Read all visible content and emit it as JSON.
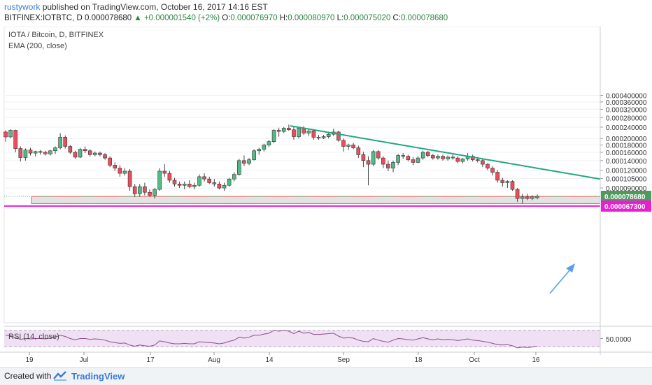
{
  "header": {
    "author": "rustywork",
    "published_text": "published on TradingView.com, October 16, 2017 14:16 EST",
    "symbol_line": "BITFINEX:IOTBTC, D",
    "last": "0.000078680",
    "change": "+0.000001540 (+2%)",
    "o_label": "O:",
    "o_val": "0.000076970",
    "h_label": "H:",
    "h_val": "0.000080970",
    "l_label": "L:",
    "l_val": "0.000075020",
    "c_label": "C:",
    "c_val": "0.000078680"
  },
  "legend": {
    "title": "IOTA / Bitcoin, D, BITFINEX",
    "ema": "EMA (200, close)"
  },
  "rsi": {
    "label": "RSI (14, close)",
    "value_label": "50.0000"
  },
  "footer": {
    "created": "Created with",
    "brand": "TradingView"
  },
  "colors": {
    "up": "#53b987",
    "down": "#eb4d5c",
    "trend": "#21a882",
    "arrow": "#5aa0e6",
    "support_fill": "#d9d9d9",
    "support_border": "#e8574c",
    "magenta": "#e91ed4",
    "rsi_line": "#8e4b8f",
    "rsi_band": "#efe0f3"
  },
  "chart_data": {
    "type": "candlestick",
    "scale": "log",
    "y_ticks": [
      "0.000400000",
      "0.000360000",
      "0.000320000",
      "0.000280000",
      "0.000240000",
      "0.000200000",
      "0.000180000",
      "0.000160000",
      "0.000140000",
      "0.000120000",
      "0.000105000",
      "0.000090000"
    ],
    "y_tick_values": [
      0.0004,
      0.00036,
      0.00032,
      0.00028,
      0.00024,
      0.0002,
      0.00018,
      0.00016,
      0.00014,
      0.00012,
      0.000105,
      9e-05
    ],
    "x_labels": [
      "19",
      "Jul",
      "17",
      "Aug",
      "14",
      "Sep",
      "18",
      "Oct",
      "16"
    ],
    "price_labels": [
      {
        "text": "0.000078680",
        "value": 7.868e-05,
        "kind": "last"
      },
      {
        "text": "0.000067300",
        "value": 6.73e-05,
        "kind": "level"
      }
    ],
    "support_zone": [
      7e-05,
      7.86e-05
    ],
    "magenta_level": 6.73e-05,
    "trendline": [
      [
        0.000245,
        0
      ],
      [
        0.000104,
        1
      ]
    ],
    "candles": [
      [
        0.000222,
        0.000228,
        0.00019,
        0.000205
      ],
      [
        0.000205,
        0.000232,
        0.000201,
        0.000228
      ],
      [
        0.000228,
        0.00023,
        0.00016,
        0.00017
      ],
      [
        0.00017,
        0.000176,
        0.000138,
        0.000147
      ],
      [
        0.000147,
        0.00017,
        0.00014,
        0.000166
      ],
      [
        0.000166,
        0.000172,
        0.000152,
        0.000158
      ],
      [
        0.000158,
        0.000164,
        0.00015,
        0.000162
      ],
      [
        0.000162,
        0.000166,
        0.000154,
        0.00016
      ],
      [
        0.00016,
        0.000164,
        0.000152,
        0.000156
      ],
      [
        0.000156,
        0.000166,
        0.000152,
        0.000164
      ],
      [
        0.000164,
        0.000176,
        0.000156,
        0.000172
      ],
      [
        0.000172,
        0.000218,
        0.000168,
        0.000204
      ],
      [
        0.000204,
        0.00021,
        0.00017,
        0.000176
      ],
      [
        0.000176,
        0.00018,
        0.000156,
        0.00016
      ],
      [
        0.00016,
        0.000164,
        0.000144,
        0.000148
      ],
      [
        0.000148,
        0.000172,
        0.000146,
        0.000168
      ],
      [
        0.000168,
        0.000176,
        0.000158,
        0.000164
      ],
      [
        0.000164,
        0.000168,
        0.00015,
        0.000154
      ],
      [
        0.000154,
        0.000162,
        0.00015,
        0.000158
      ],
      [
        0.000158,
        0.000162,
        0.00015,
        0.000154
      ],
      [
        0.000154,
        0.000158,
        0.000142,
        0.000146
      ],
      [
        0.000146,
        0.00015,
        0.000126,
        0.00013
      ],
      [
        0.00013,
        0.000136,
        0.000118,
        0.000124
      ],
      [
        0.000124,
        0.00013,
        0.000108,
        0.000114
      ],
      [
        0.000114,
        0.000124,
        0.00011,
        0.000118
      ],
      [
        0.000118,
        0.000122,
        8.6e-05,
        9.2e-05
      ],
      [
        9.2e-05,
        9.6e-05,
        7.8e-05,
        8.2e-05
      ],
      [
        8.2e-05,
        9.6e-05,
        7.8e-05,
        9.2e-05
      ],
      [
        9.2e-05,
        9.8e-05,
        8e-05,
        8.4e-05
      ],
      [
        8.4e-05,
        8.8e-05,
        7.8e-05,
        8e-05
      ],
      [
        8e-05,
        9e-05,
        7.6e-05,
        8.8e-05
      ],
      [
        8.8e-05,
        0.000124,
        8.6e-05,
        0.000118
      ],
      [
        0.000118,
        0.000132,
        0.000108,
        0.000114
      ],
      [
        0.000114,
        0.000118,
        9.8e-05,
        0.000102
      ],
      [
        0.000102,
        0.000106,
        9.2e-05,
        9.6e-05
      ],
      [
        9.6e-05,
        0.0001,
        9e-05,
        9.4e-05
      ],
      [
        9.4e-05,
        0.0001,
        8.8e-05,
        9.6e-05
      ],
      [
        9.6e-05,
        0.000102,
        9e-05,
        9.2e-05
      ],
      [
        9.2e-05,
        9.8e-05,
        8.8e-05,
        9.4e-05
      ],
      [
        9.4e-05,
        0.000112,
        9.2e-05,
        0.000108
      ],
      [
        0.000108,
        0.000114,
        0.0001,
        0.000104
      ],
      [
        0.000104,
        0.000108,
        9.6e-05,
        9.8e-05
      ],
      [
        9.8e-05,
        0.000104,
        9.2e-05,
        9.6e-05
      ],
      [
        9.6e-05,
        0.0001,
        8.8e-05,
        9e-05
      ],
      [
        9e-05,
        9.8e-05,
        8.6e-05,
        9.4e-05
      ],
      [
        9.4e-05,
        0.000106,
        9.2e-05,
        0.000104
      ],
      [
        0.000104,
        0.000116,
        0.0001,
        0.000112
      ],
      [
        0.000112,
        0.000144,
        0.00011,
        0.00014
      ],
      [
        0.00014,
        0.000152,
        0.000128,
        0.000134
      ],
      [
        0.000134,
        0.000146,
        0.00013,
        0.000142
      ],
      [
        0.000142,
        0.000168,
        0.00014,
        0.000164
      ],
      [
        0.000164,
        0.000172,
        0.000154,
        0.000168
      ],
      [
        0.000168,
        0.000184,
        0.000162,
        0.00018
      ],
      [
        0.00018,
        0.000196,
        0.000174,
        0.00019
      ],
      [
        0.00019,
        0.000232,
        0.000186,
        0.000228
      ],
      [
        0.000228,
        0.000238,
        0.000206,
        0.000224
      ],
      [
        0.000224,
        0.00024,
        0.000218,
        0.000236
      ],
      [
        0.000236,
        0.00025,
        0.000226,
        0.00023
      ],
      [
        0.00023,
        0.000244,
        0.000196,
        0.000206
      ],
      [
        0.000206,
        0.00024,
        0.0002,
        0.000236
      ],
      [
        0.000236,
        0.000244,
        0.000212,
        0.000218
      ],
      [
        0.000218,
        0.000232,
        0.000208,
        0.000226
      ],
      [
        0.000226,
        0.00023,
        0.000196,
        0.000204
      ],
      [
        0.000204,
        0.000212,
        0.000196,
        0.000202
      ],
      [
        0.000202,
        0.000212,
        0.000198,
        0.000206
      ],
      [
        0.000206,
        0.000218,
        0.0002,
        0.000214
      ],
      [
        0.000214,
        0.000234,
        0.000208,
        0.000222
      ],
      [
        0.000222,
        0.000226,
        0.00019,
        0.000194
      ],
      [
        0.000194,
        0.0002,
        0.000162,
        0.000176
      ],
      [
        0.000176,
        0.000184,
        0.000166,
        0.00018
      ],
      [
        0.00018,
        0.000186,
        0.000168,
        0.000172
      ],
      [
        0.000172,
        0.000178,
        0.000146,
        0.000154
      ],
      [
        0.000154,
        0.000162,
        0.000126,
        0.00014
      ],
      [
        0.00014,
        0.00015,
        9.4e-05,
        0.000132
      ],
      [
        0.000132,
        0.000166,
        0.000128,
        0.000162
      ],
      [
        0.000162,
        0.000166,
        0.000142,
        0.000146
      ],
      [
        0.000146,
        0.00015,
        0.000124,
        0.000132
      ],
      [
        0.000132,
        0.00014,
        0.000118,
        0.000124
      ],
      [
        0.000124,
        0.00014,
        0.000116,
        0.000136
      ],
      [
        0.000136,
        0.000156,
        0.00013,
        0.000152
      ],
      [
        0.000152,
        0.000158,
        0.000144,
        0.00015
      ],
      [
        0.00015,
        0.000154,
        0.000138,
        0.000142
      ],
      [
        0.000142,
        0.000148,
        0.00013,
        0.000136
      ],
      [
        0.000136,
        0.00015,
        0.000134,
        0.000146
      ],
      [
        0.000146,
        0.000164,
        0.000142,
        0.00016
      ],
      [
        0.00016,
        0.000164,
        0.000148,
        0.000152
      ],
      [
        0.000152,
        0.000156,
        0.000142,
        0.000146
      ],
      [
        0.000146,
        0.000154,
        0.000142,
        0.00015
      ],
      [
        0.00015,
        0.000154,
        0.00014,
        0.000144
      ],
      [
        0.000144,
        0.000152,
        0.00014,
        0.000148
      ],
      [
        0.000148,
        0.000154,
        0.000142,
        0.000146
      ],
      [
        0.000146,
        0.00015,
        0.000134,
        0.000138
      ],
      [
        0.000138,
        0.000146,
        0.000134,
        0.000144
      ],
      [
        0.000144,
        0.000158,
        0.00014,
        0.00015
      ],
      [
        0.00015,
        0.000154,
        0.000138,
        0.000142
      ],
      [
        0.000142,
        0.000148,
        0.000136,
        0.00014
      ],
      [
        0.00014,
        0.000144,
        0.000126,
        0.000132
      ],
      [
        0.000132,
        0.000134,
        0.00012,
        0.000124
      ],
      [
        0.000124,
        0.000128,
        0.00011,
        0.000116
      ],
      [
        0.000116,
        0.00012,
        9.8e-05,
        0.000102
      ],
      [
        0.000102,
        0.000106,
        9.2e-05,
        9.8e-05
      ],
      [
        9.8e-05,
        0.000102,
        9e-05,
        0.0001
      ],
      [
        0.0001,
        0.000102,
        8.6e-05,
        8.8e-05
      ],
      [
        8.8e-05,
        9e-05,
        7.2e-05,
        7.6e-05
      ],
      [
        7.6e-05,
        8.2e-05,
        7e-05,
        7.8e-05
      ],
      [
        7.8e-05,
        8.2e-05,
        7.4e-05,
        7.6e-05
      ],
      [
        7.6e-05,
        8e-05,
        7.4e-05,
        7.8e-05
      ],
      [
        7.7e-05,
        8.1e-05,
        7.5e-05,
        7.87e-05
      ]
    ],
    "rsi_values": [
      58,
      57,
      52,
      48,
      50,
      49,
      50,
      50,
      49,
      51,
      53,
      58,
      55,
      50,
      47,
      50,
      50,
      48,
      49,
      48,
      46,
      42,
      40,
      38,
      39,
      34,
      31,
      34,
      32,
      31,
      34,
      44,
      42,
      39,
      37,
      37,
      38,
      37,
      37,
      42,
      41,
      40,
      39,
      37,
      39,
      43,
      46,
      53,
      51,
      53,
      58,
      58,
      61,
      63,
      70,
      68,
      70,
      68,
      62,
      68,
      63,
      65,
      60,
      60,
      61,
      62,
      63,
      56,
      51,
      52,
      51,
      46,
      43,
      42,
      50,
      46,
      43,
      41,
      46,
      50,
      49,
      47,
      46,
      49,
      52,
      49,
      47,
      49,
      47,
      48,
      47,
      45,
      47,
      49,
      46,
      45,
      43,
      41,
      38,
      35,
      34,
      35,
      32,
      27,
      29,
      28,
      29,
      31
    ]
  }
}
